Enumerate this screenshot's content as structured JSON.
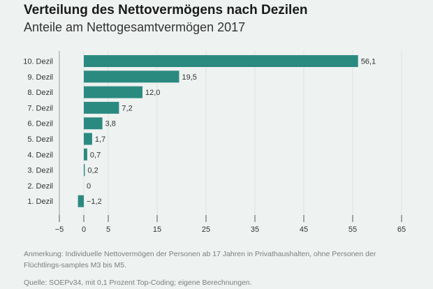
{
  "chart_data": {
    "type": "bar",
    "orientation": "horizontal",
    "title": "Verteilung des Nettovermögens nach Dezilen",
    "subtitle": "Anteile am Nettogesamtvermögen 2017",
    "categories": [
      "10. Dezil",
      "9. Dezil",
      "8. Dezil",
      "7. Dezil",
      "6. Dezil",
      "5. Dezil",
      "4. Dezil",
      "3. Dezil",
      "2. Dezil",
      "1. Dezil"
    ],
    "values": [
      56.1,
      19.5,
      12.0,
      7.2,
      3.8,
      1.7,
      0.7,
      0.2,
      0,
      -1.2
    ],
    "value_labels": [
      "56,1",
      "19,5",
      "12,0",
      "7,2",
      "3,8",
      "1,7",
      "0,7",
      "0,2",
      "0",
      "−1,2"
    ],
    "xticks": [
      -5,
      0,
      5,
      15,
      25,
      35,
      45,
      55,
      65
    ],
    "xtick_labels": [
      "−5",
      "0",
      "5",
      "15",
      "25",
      "35",
      "45",
      "55",
      "65"
    ],
    "xlim": [
      -5,
      65
    ],
    "xlabel": "",
    "ylabel": "",
    "grid": true,
    "bar_color": "#2b8a80"
  },
  "notes": {
    "annotation": "Anmerkung: Individuelle Nettovermögen der Personen ab 17 Jahren in Privathaushalten, ohne Personen der Flüchtlings-samples M3 bis M5.",
    "source": "Quelle: SOEPv34, mit 0,1 Prozent Top-Coding; eigene Berechnungen."
  }
}
